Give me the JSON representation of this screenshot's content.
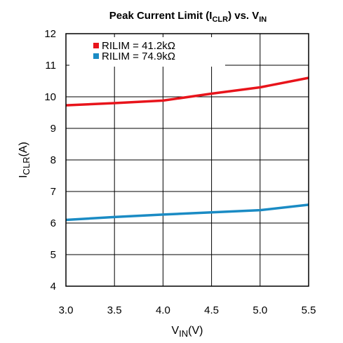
{
  "chart_data": {
    "type": "line",
    "title": {
      "prefix": "Peak Current Limit (I",
      "prefix_sub": "CLR",
      "middle": ") vs. V",
      "suffix_sub": "IN"
    },
    "xlabel": {
      "main": "V",
      "sub": "IN",
      "rest": "(V)"
    },
    "ylabel": {
      "main": "I",
      "sub": "CLR",
      "rest": "(A)"
    },
    "xlim": [
      3.0,
      5.5
    ],
    "ylim": [
      4,
      12
    ],
    "x_ticks": [
      "3.0",
      "3.5",
      "4.0",
      "4.5",
      "5.0",
      "5.5"
    ],
    "y_ticks": [
      "4",
      "5",
      "6",
      "7",
      "8",
      "9",
      "10",
      "11",
      "12"
    ],
    "grid": true,
    "legend_position": "top-left",
    "series": [
      {
        "name": "RILIM = 41.2kΩ",
        "color": "#e8141b",
        "x": [
          3.0,
          3.5,
          4.0,
          4.5,
          5.0,
          5.5
        ],
        "y": [
          9.73,
          9.8,
          9.88,
          10.1,
          10.3,
          10.6
        ]
      },
      {
        "name": "RILIM = 74.9kΩ",
        "color": "#1a8bc4",
        "x": [
          3.0,
          3.5,
          4.0,
          4.5,
          5.0,
          5.5
        ],
        "y": [
          6.1,
          6.19,
          6.27,
          6.34,
          6.41,
          6.58
        ]
      }
    ]
  }
}
